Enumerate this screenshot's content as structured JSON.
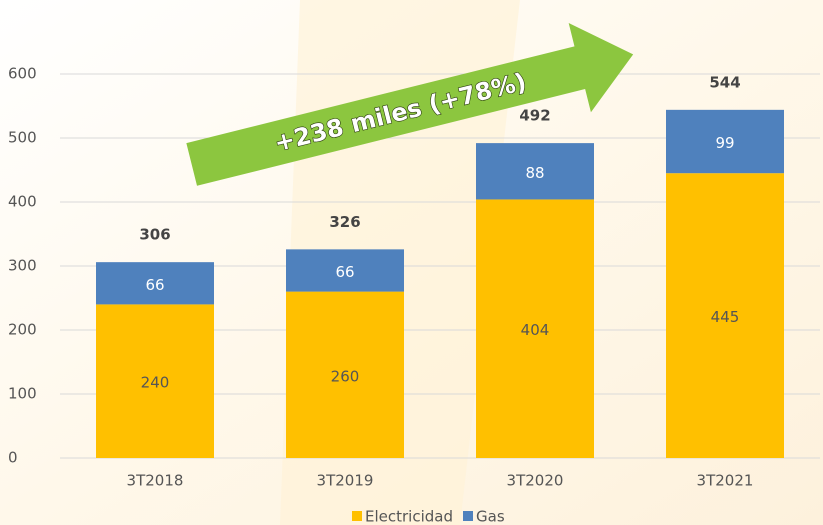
{
  "chart_data": {
    "type": "stacked_bar",
    "annotation": "+238 miles  (+78%)",
    "categories": [
      "3T2018",
      "3T2019",
      "3T2020",
      "3T2021"
    ],
    "series": [
      {
        "name": "Electricidad",
        "color": "#ffc000",
        "values": [
          240,
          260,
          404,
          445
        ]
      },
      {
        "name": "Gas",
        "color": "#4f81bd",
        "values": [
          66,
          66,
          88,
          99
        ]
      }
    ],
    "totals": [
      306,
      326,
      492,
      544
    ],
    "ylim": [
      0,
      600
    ],
    "yticks": [
      0,
      100,
      200,
      300,
      400,
      500,
      600
    ],
    "grid": true
  }
}
